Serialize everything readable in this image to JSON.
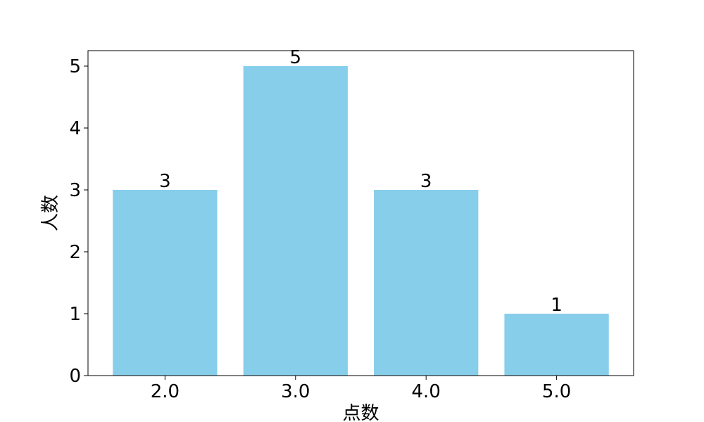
{
  "chart_data": {
    "type": "bar",
    "categories": [
      "2.0",
      "3.0",
      "4.0",
      "5.0"
    ],
    "values": [
      3,
      5,
      3,
      1
    ],
    "data_labels": [
      "3",
      "5",
      "3",
      "1"
    ],
    "title": "",
    "xlabel": "点数",
    "ylabel": "人数",
    "ylim": [
      0,
      5.25
    ],
    "yticks": [
      "0",
      "1",
      "2",
      "3",
      "4",
      "5"
    ],
    "bar_color": "#87ceeb",
    "grid": false,
    "legend": "none"
  }
}
